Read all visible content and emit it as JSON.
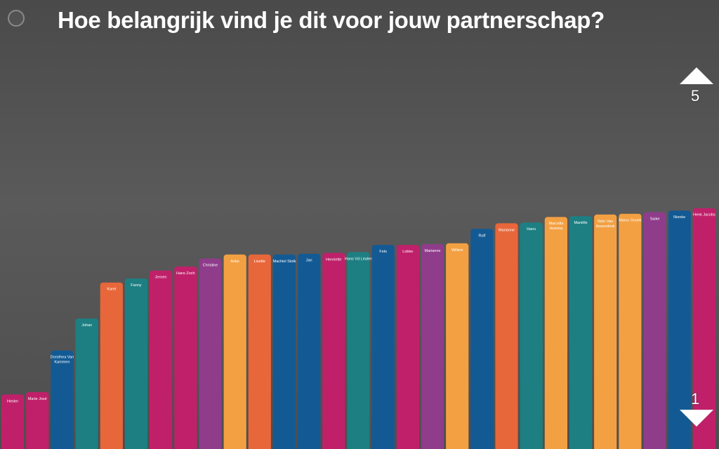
{
  "title": "Hoe belangrijk vind je dit voor jouw partnerschap?",
  "scale": {
    "top_label": "5",
    "bottom_label": "1"
  },
  "colors": {
    "magenta": "#c0206a",
    "orange": "#e8673a",
    "blue": "#135a94",
    "teal": "#1d7f82",
    "purple": "#8f3c8b",
    "gold": "#f3a043",
    "background": "#545454"
  },
  "chart_data": {
    "type": "bar",
    "title": "Hoe belangrijk vind je dit voor jouw partnerschap?",
    "xlabel": "",
    "ylabel": "",
    "ylim": [
      1,
      5
    ],
    "grid": false,
    "legend": "none",
    "categories": [
      "Hester",
      "Marie José",
      "Dorothea Van Kammen",
      "Johan",
      "Karel",
      "Fanny",
      "Jeroen",
      "Hans Zoch",
      "Christine",
      "Anke",
      "Lisette",
      "Machiel Stolk",
      "Jan",
      "Henriette",
      "Hans Vd Linden",
      "Felo",
      "Lobke",
      "Marianne",
      "Willem",
      "Rolf",
      "Marianne",
      "Hans",
      "Marcella Hulsma",
      "Mariëlle",
      "Rein Van Assendonk",
      "Marco Snoek",
      "Saike",
      "Nienke",
      "Henk Jacobs"
    ],
    "values": [
      1.05,
      1.08,
      1.6,
      2.0,
      2.45,
      2.5,
      2.6,
      2.65,
      2.75,
      2.8,
      2.8,
      2.8,
      2.81,
      2.82,
      2.83,
      2.92,
      2.92,
      2.93,
      2.94,
      3.12,
      3.19,
      3.2,
      3.27,
      3.28,
      3.3,
      3.31,
      3.33,
      3.35,
      3.38
    ],
    "bar_colors": [
      "magenta",
      "magenta",
      "blue",
      "teal",
      "orange",
      "teal",
      "magenta",
      "magenta",
      "purple",
      "gold",
      "orange",
      "blue",
      "blue",
      "magenta",
      "teal",
      "blue",
      "magenta",
      "purple",
      "gold",
      "blue",
      "orange",
      "teal",
      "gold",
      "teal",
      "gold",
      "gold",
      "purple",
      "blue",
      "magenta"
    ]
  }
}
